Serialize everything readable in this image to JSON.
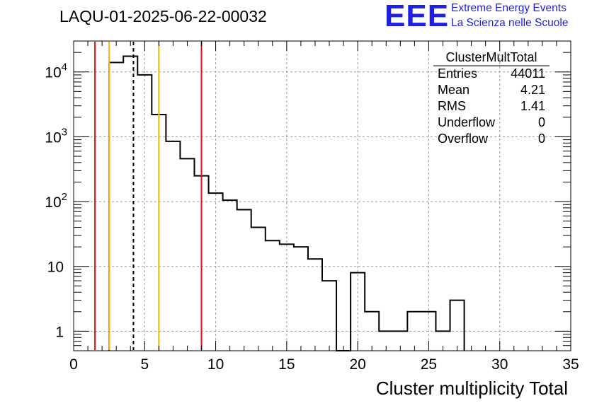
{
  "title": "LAQU-01-2025-06-22-00032",
  "logo": {
    "mark": "EEE",
    "line1": "Extreme Energy Events",
    "line2": "La Scienza nelle Scuole",
    "color": "#1f1fe6"
  },
  "stats_box": {
    "name": "ClusterMultTotal",
    "rows": [
      {
        "label": "Entries",
        "value": "44011"
      },
      {
        "label": "Mean",
        "value": "4.21"
      },
      {
        "label": "RMS",
        "value": "1.41"
      },
      {
        "label": "Underflow",
        "value": "0"
      },
      {
        "label": "Overflow",
        "value": "0"
      }
    ]
  },
  "colors": {
    "histogram": "#000000",
    "red_lines": "#dd1111",
    "yellow_lines": "#f2b600",
    "mean_line": "#000000",
    "grid": "#9a9a9a"
  },
  "chart_data": {
    "type": "histogram",
    "title": "LAQU-01-2025-06-22-00032",
    "xlabel": "Cluster multiplicity Total",
    "ylabel": "",
    "y_scale": "log",
    "xlim": [
      0,
      35
    ],
    "ylim": [
      0.5,
      30000
    ],
    "grid": true,
    "x_ticks": [
      0,
      5,
      10,
      15,
      20,
      25,
      30,
      35
    ],
    "x_tick_labels": [
      "0",
      "5",
      "10",
      "15",
      "20",
      "25",
      "30",
      "35"
    ],
    "y_ticks": [
      1,
      10,
      100,
      1000,
      10000
    ],
    "y_tick_labels": [
      {
        "base": "1",
        "exp": ""
      },
      {
        "base": "10",
        "exp": ""
      },
      {
        "base": "10",
        "exp": "2"
      },
      {
        "base": "10",
        "exp": "3"
      },
      {
        "base": "10",
        "exp": "4"
      }
    ],
    "bin_edges": [
      2.5,
      3.5,
      4.5,
      5.5,
      6.5,
      7.5,
      8.5,
      9.5,
      10.5,
      11.5,
      12.5,
      13.5,
      14.5,
      15.5,
      16.5,
      17.5,
      18.5,
      19.5,
      20.5,
      21.5,
      22.5,
      23.5,
      24.5,
      25.5,
      26.5,
      27.5
    ],
    "counts": [
      14000,
      17500,
      9000,
      2200,
      850,
      460,
      250,
      135,
      105,
      75,
      40,
      25,
      22,
      20,
      13,
      6,
      0,
      8,
      2,
      1,
      1,
      2,
      2,
      1,
      3
    ],
    "vertical_lines": [
      {
        "x": 1.5,
        "color": "red",
        "style": "solid"
      },
      {
        "x": 2.5,
        "color": "yellow",
        "style": "solid"
      },
      {
        "x": 4.21,
        "color": "black",
        "style": "dashed"
      },
      {
        "x": 6.0,
        "color": "yellow",
        "style": "solid"
      },
      {
        "x": 9.0,
        "color": "red",
        "style": "solid"
      }
    ]
  }
}
